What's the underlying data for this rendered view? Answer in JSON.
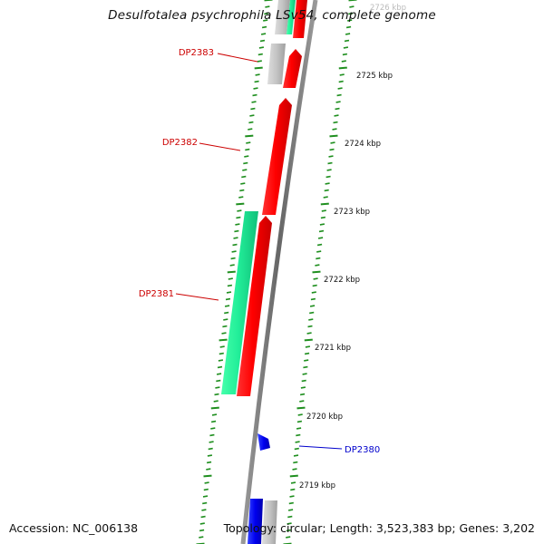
{
  "title": "Desulfotalea psychrophila LSv54, complete genome",
  "accession": "Accession: NC_006138",
  "summary": "Topology: circular; Length: 3,523,383 bp; Genes: 3,202",
  "colors": {
    "backbone": "#777777",
    "tick": "#1f8f1f",
    "gene_red": "#ee1111",
    "gene_green": "#22ee99",
    "gene_gray": "#bbbbbb",
    "gene_blue": "#1111ee",
    "label_red": "#cc0000",
    "label_blue": "#0000cc"
  },
  "scale_labels": [
    {
      "kbp": 2726,
      "label": "2726 kbp"
    },
    {
      "kbp": 2725,
      "label": "2725 kbp"
    },
    {
      "kbp": 2724,
      "label": "2724 kbp"
    },
    {
      "kbp": 2723,
      "label": "2723 kbp"
    },
    {
      "kbp": 2722,
      "label": "2722 kbp"
    },
    {
      "kbp": 2721,
      "label": "2721 kbp"
    },
    {
      "kbp": 2720,
      "label": "2720 kbp"
    },
    {
      "kbp": 2719,
      "label": "2719 kbp"
    }
  ],
  "gene_labels": [
    {
      "name": "DP2383",
      "color": "label_red"
    },
    {
      "name": "DP2382",
      "color": "label_red"
    },
    {
      "name": "DP2381",
      "color": "label_red"
    },
    {
      "name": "DP2380",
      "color": "label_blue"
    }
  ]
}
